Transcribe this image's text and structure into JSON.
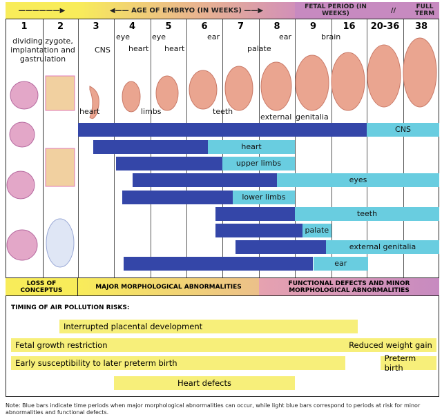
{
  "header": {
    "left_arrow": "",
    "embryo_label": "AGE OF EMBRYO (IN WEEKS)",
    "fetal_label": "FETAL PERIOD (IN WEEKS)",
    "fullterm_label": "FULL TERM",
    "break_mark": "//"
  },
  "weeks": [
    "1",
    "2",
    "3",
    "4",
    "5",
    "6",
    "7",
    "8",
    "9",
    "16",
    "20-36",
    "38"
  ],
  "annotations": {
    "early": "dividing zygote, implantation and gastrulation",
    "cns": "CNS",
    "heart3": "heart",
    "eye4": "eye",
    "heart4": "heart",
    "eye5": "eye",
    "heart5": "heart",
    "limbs": "limbs",
    "ear6": "ear",
    "teeth": "teeth",
    "palate": "palate",
    "ear8": "ear",
    "ext": "external",
    "genitalia": "genitalia",
    "brain": "brain"
  },
  "colors": {
    "major": "#3446a8",
    "minor": "#69cde0",
    "risk": "#f7ef7a",
    "yellow": "#f8ec5a",
    "purple": "#c78ac0"
  },
  "chart_data": {
    "type": "bar",
    "categories": [
      "1",
      "2",
      "3",
      "4",
      "5",
      "6",
      "7",
      "8",
      "9",
      "16",
      "20-36",
      "38"
    ],
    "unit": "column position (week column k spans k-1..k)",
    "series": [
      {
        "name": "CNS",
        "major": [
          2.0,
          10.0
        ],
        "minor": [
          10.0,
          12.0
        ]
      },
      {
        "name": "heart",
        "major": [
          2.42,
          5.6
        ],
        "minor": [
          5.6,
          8.0
        ]
      },
      {
        "name": "upper limbs",
        "major": [
          3.05,
          6.0
        ],
        "minor": [
          6.0,
          8.0
        ]
      },
      {
        "name": "eyes",
        "major": [
          3.5,
          7.5
        ],
        "minor": [
          7.5,
          12.0
        ]
      },
      {
        "name": "lower limbs",
        "major": [
          3.22,
          6.28
        ],
        "minor": [
          6.28,
          8.0
        ]
      },
      {
        "name": "teeth",
        "major": [
          5.8,
          8.0
        ],
        "minor": [
          8.0,
          12.0
        ]
      },
      {
        "name": "palate",
        "major": [
          5.8,
          8.2
        ],
        "minor": [
          8.2,
          9.0
        ]
      },
      {
        "name": "external genitalia",
        "major": [
          6.35,
          8.85
        ],
        "minor": [
          8.85,
          12.0
        ]
      },
      {
        "name": "ear",
        "major": [
          3.27,
          8.5
        ],
        "minor": [
          8.5,
          10.04
        ]
      }
    ]
  },
  "bands": {
    "loss": "LOSS OF CONCEPTUS",
    "major": "MAJOR MORPHOLOGICAL ABNORMALITIES",
    "functional": "FUNCTIONAL DEFECTS AND MINOR MORPHOLOGICAL ABNORMALITIES"
  },
  "risks": {
    "title": "TIMING OF AIR POLLUTION RISKS:",
    "items": [
      {
        "label": "Interrupted placental development",
        "range": [
          1.47,
          9.75
        ]
      },
      {
        "label": "Fetal growth restriction",
        "range": [
          0.15,
          11.92
        ],
        "end_label": "Reduced weight gain"
      },
      {
        "label": "Early susceptibility to later preterm birth",
        "range": [
          0.15,
          9.39
        ]
      },
      {
        "label": "Preterm birth",
        "range": [
          10.37,
          11.92
        ]
      },
      {
        "label": "Heart defects",
        "range": [
          3.0,
          8.0
        ]
      }
    ]
  },
  "note": "Note: Blue bars indicate time periods when major morphological abnormalities can occur, while light blue bars correspond to periods at risk for minor abnormalities and functional defects."
}
